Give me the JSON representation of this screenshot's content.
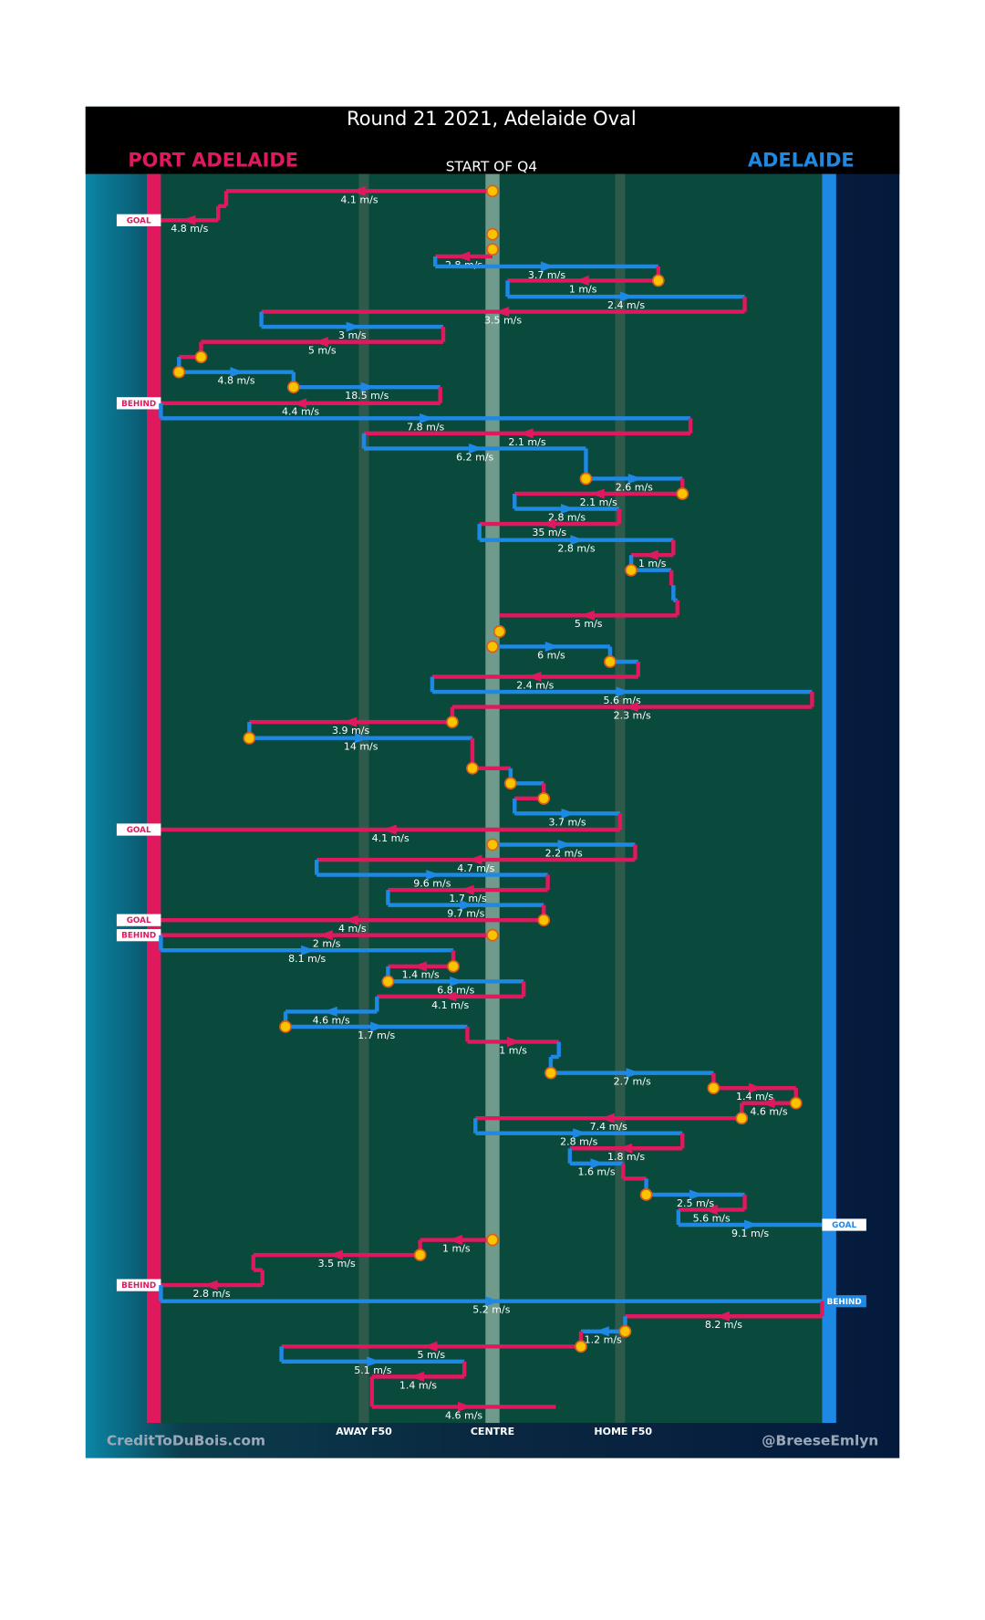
{
  "title": "Round 21 2021, Adelaide Oval",
  "teams": [
    "PORT ADELAIDE",
    "ADELAIDE"
  ],
  "subtitle": "START OF Q4",
  "axis_labels": [
    "AWAY F50",
    "CENTRE",
    "HOME F50"
  ],
  "credits": [
    "CreditToDuBois.com",
    "@BreeseEmlyn"
  ],
  "events": [
    {
      "team": "PORT ADELAIDE",
      "speed": "4.1 m/s"
    },
    {
      "team": "PORT ADELAIDE"
    },
    {
      "team": "PORT ADELAIDE",
      "speed": "4.8 m/s",
      "result": "GOAL"
    },
    {
      "team": "PORT ADELAIDE",
      "speed": "2.8 m/s"
    },
    {
      "team": "ADELAIDE",
      "speed": "3.7 m/s"
    },
    {
      "team": "PORT ADELAIDE",
      "speed": "1 m/s"
    },
    {
      "team": "ADELAIDE",
      "speed": "2.4 m/s"
    },
    {
      "team": "PORT ADELAIDE",
      "speed": "3.5 m/s"
    },
    {
      "team": "ADELAIDE",
      "speed": "3 m/s"
    },
    {
      "team": "PORT ADELAIDE",
      "speed": "5 m/s"
    },
    {
      "team": "PORT ADELAIDE"
    },
    {
      "team": "ADELAIDE",
      "speed": "4.8 m/s"
    },
    {
      "team": "ADELAIDE",
      "speed": "18.5 m/s"
    },
    {
      "team": "PORT ADELAIDE",
      "speed": "4.4 m/s",
      "result": "BEHIND"
    },
    {
      "team": "ADELAIDE",
      "speed": "7.8 m/s"
    },
    {
      "team": "PORT ADELAIDE",
      "speed": "2.1 m/s"
    },
    {
      "team": "ADELAIDE",
      "speed": "6.2 m/s"
    },
    {
      "team": "ADELAIDE",
      "speed": "2.6 m/s"
    },
    {
      "team": "PORT ADELAIDE",
      "speed": "2.1 m/s"
    },
    {
      "team": "ADELAIDE",
      "speed": "2.8 m/s"
    },
    {
      "team": "PORT ADELAIDE",
      "speed": "35 m/s"
    },
    {
      "team": "ADELAIDE",
      "speed": "2.8 m/s"
    },
    {
      "team": "PORT ADELAIDE",
      "speed": "1 m/s"
    },
    {
      "team": "ADELAIDE"
    },
    {
      "team": "PORT ADELAIDE"
    },
    {
      "team": "ADELAIDE"
    },
    {
      "team": "PORT ADELAIDE",
      "speed": "5 m/s"
    },
    {
      "team": "ADELAIDE",
      "speed": "6 m/s"
    },
    {
      "team": "ADELAIDE"
    },
    {
      "team": "PORT ADELAIDE",
      "speed": "2.4 m/s"
    },
    {
      "team": "ADELAIDE",
      "speed": "5.6 m/s"
    },
    {
      "team": "PORT ADELAIDE",
      "speed": "2.3 m/s"
    },
    {
      "team": "PORT ADELAIDE",
      "speed": "3.9 m/s"
    },
    {
      "team": "ADELAIDE",
      "speed": "14 m/s"
    },
    {
      "team": "PORT ADELAIDE"
    },
    {
      "team": "ADELAIDE"
    },
    {
      "team": "PORT ADELAIDE"
    },
    {
      "team": "ADELAIDE",
      "speed": "3.7 m/s"
    },
    {
      "team": "PORT ADELAIDE",
      "speed": "4.1 m/s",
      "result": "GOAL"
    },
    {
      "team": "ADELAIDE",
      "speed": "2.2 m/s"
    },
    {
      "team": "PORT ADELAIDE",
      "speed": "4.7 m/s"
    },
    {
      "team": "ADELAIDE",
      "speed": "9.6 m/s"
    },
    {
      "team": "PORT ADELAIDE",
      "speed": "1.7 m/s"
    },
    {
      "team": "ADELAIDE",
      "speed": "9.7 m/s"
    },
    {
      "team": "PORT ADELAIDE",
      "speed": "4 m/s",
      "result": "GOAL"
    },
    {
      "team": "PORT ADELAIDE",
      "speed": "2 m/s",
      "result": "BEHIND"
    },
    {
      "team": "ADELAIDE",
      "speed": "8.1 m/s"
    },
    {
      "team": "PORT ADELAIDE",
      "speed": "1.4 m/s"
    },
    {
      "team": "ADELAIDE",
      "speed": "6.8 m/s"
    },
    {
      "team": "PORT ADELAIDE",
      "speed": "4.1 m/s"
    },
    {
      "team": "ADELAIDE",
      "speed": "4.6 m/s"
    },
    {
      "team": "ADELAIDE",
      "speed": "1.7 m/s"
    },
    {
      "team": "PORT ADELAIDE",
      "speed": "1 m/s"
    },
    {
      "team": "ADELAIDE"
    },
    {
      "team": "ADELAIDE",
      "speed": "2.7 m/s"
    },
    {
      "team": "PORT ADELAIDE",
      "speed": "1.4 m/s"
    },
    {
      "team": "PORT ADELAIDE",
      "speed": "4.6 m/s"
    },
    {
      "team": "PORT ADELAIDE",
      "speed": "7.4 m/s"
    },
    {
      "team": "ADELAIDE",
      "speed": "2.8 m/s"
    },
    {
      "team": "PORT ADELAIDE",
      "speed": "1.8 m/s"
    },
    {
      "team": "ADELAIDE",
      "speed": "1.6 m/s"
    },
    {
      "team": "PORT ADELAIDE"
    },
    {
      "team": "ADELAIDE",
      "speed": "2.5 m/s"
    },
    {
      "team": "PORT ADELAIDE",
      "speed": "5.6 m/s"
    },
    {
      "team": "ADELAIDE",
      "speed": "9.1 m/s",
      "result": "GOAL"
    },
    {
      "team": "PORT ADELAIDE",
      "speed": "1 m/s"
    },
    {
      "team": "PORT ADELAIDE",
      "speed": "3.5 m/s"
    },
    {
      "team": "PORT ADELAIDE"
    },
    {
      "team": "PORT ADELAIDE",
      "speed": "2.8 m/s",
      "result": "BEHIND"
    },
    {
      "team": "ADELAIDE",
      "speed": "5.2 m/s",
      "result": "BEHIND"
    },
    {
      "team": "PORT ADELAIDE",
      "speed": "8.2 m/s"
    },
    {
      "team": "ADELAIDE",
      "speed": "1.2 m/s"
    },
    {
      "team": "PORT ADELAIDE",
      "speed": "5 m/s"
    },
    {
      "team": "ADELAIDE",
      "speed": "5.1 m/s"
    },
    {
      "team": "PORT ADELAIDE",
      "speed": "1.4 m/s"
    },
    {
      "team": "PORT ADELAIDE",
      "speed": "4.6 m/s"
    }
  ]
}
